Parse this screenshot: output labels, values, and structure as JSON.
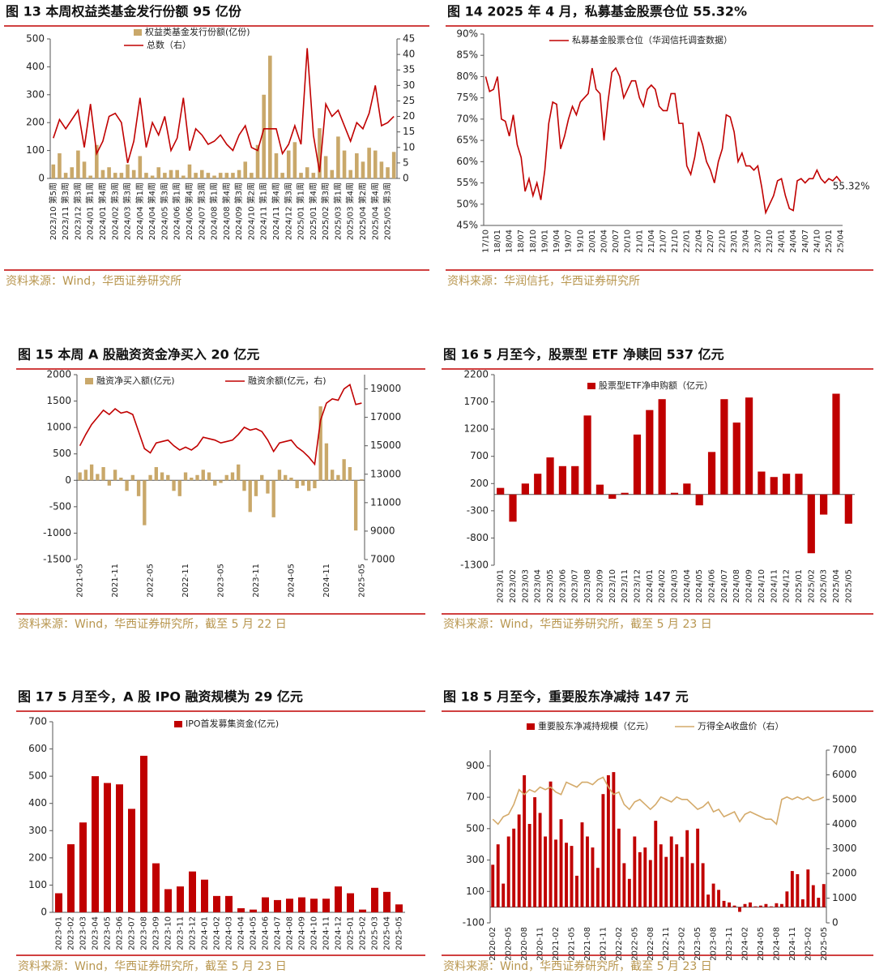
{
  "chart_data": [
    {
      "type": "combo",
      "title": "图 13 本周权益类基金发行份额 95 亿份",
      "source": "资料来源：Wind，华西证券研究所",
      "categories": [
        "2023/10 第5周",
        null,
        "2023/11 第3周",
        null,
        "2023/12 第3周",
        null,
        "2024/01 第1周",
        null,
        "2024/01 第4周",
        null,
        "2024/02 第3周",
        null,
        "2024/03 第3周",
        null,
        "2024/04 第1周",
        null,
        "2024/04 第4周",
        null,
        "2024/05 第3周",
        null,
        "2024/06 第1周",
        null,
        "2024/06 第4周",
        null,
        "2024/07 第3周",
        null,
        "2024/08 第1周",
        null,
        "2024/08 第4周",
        null,
        "2024/09 第3周",
        null,
        "2024/10 第2周",
        null,
        "2024/11 第1周",
        null,
        "2024/11 第4周",
        null,
        "2024/12 第3周",
        null,
        "2025/01 第1周",
        null,
        "2025/01 第4周",
        null,
        "2025/02 第3周",
        null,
        "2025/03 第1周",
        null,
        "2025/03 第4周",
        null,
        "2025/04 第2周",
        null,
        "2025/04 第4周",
        null,
        "2025/05 第3周",
        null
      ],
      "ylim": [
        0,
        500
      ],
      "yticks": [
        0,
        100,
        200,
        300,
        400,
        500
      ],
      "y2lim": [
        0,
        45
      ],
      "y2ticks": [
        0,
        5,
        10,
        15,
        20,
        25,
        30,
        35,
        40,
        45
      ],
      "series": [
        {
          "name": "权益类基金发行份额(亿份)",
          "type": "bar",
          "color": "#c9a86a",
          "values": [
            50,
            90,
            20,
            40,
            100,
            60,
            10,
            120,
            30,
            40,
            20,
            20,
            50,
            30,
            80,
            20,
            10,
            40,
            20,
            30,
            30,
            10,
            50,
            20,
            30,
            20,
            10,
            20,
            20,
            20,
            30,
            60,
            20,
            120,
            300,
            440,
            90,
            20,
            100,
            130,
            20,
            40,
            20,
            180,
            80,
            30,
            150,
            100,
            30,
            90,
            60,
            110,
            100,
            60,
            40,
            95
          ]
        },
        {
          "name": "总数（右）",
          "type": "line",
          "axis": "y2",
          "color": "#c00000",
          "values": [
            13,
            19,
            16,
            19,
            22,
            10,
            24,
            8,
            12,
            20,
            21,
            18,
            5,
            12,
            26,
            10,
            18,
            14,
            20,
            9,
            13,
            26,
            9,
            16,
            14,
            11,
            12,
            14,
            11,
            9,
            14,
            17,
            10,
            9,
            16,
            16,
            16,
            8,
            11,
            17,
            11,
            42,
            14,
            2,
            24,
            20,
            22,
            17,
            12,
            18,
            16,
            21,
            30,
            17,
            18,
            20
          ]
        }
      ]
    },
    {
      "type": "line",
      "title": "图 14 2025 年 4 月，私募基金股票仓位 55.32%",
      "source": "资料来源：华润信托，华西证券研究所",
      "categories": [
        "17/10",
        null,
        null,
        "18/01",
        null,
        null,
        "18/04",
        null,
        null,
        "18/07",
        null,
        null,
        "18/10",
        null,
        null,
        "19/01",
        null,
        null,
        "19/04",
        null,
        null,
        "19/07",
        null,
        null,
        "19/10",
        null,
        null,
        "20/01",
        null,
        null,
        "20/04",
        null,
        null,
        "20/07",
        null,
        null,
        "20/10",
        null,
        null,
        "21/01",
        null,
        null,
        "21/04",
        null,
        null,
        "21/07",
        null,
        null,
        "21/10",
        null,
        null,
        "22/01",
        null,
        null,
        "22/04",
        null,
        null,
        "22/07",
        null,
        null,
        "22/10",
        null,
        null,
        "23/01",
        null,
        null,
        "23/04",
        null,
        null,
        "23/07",
        null,
        null,
        "23/10",
        null,
        null,
        "24/01",
        null,
        null,
        "24/04",
        null,
        null,
        "24/07",
        null,
        null,
        "24/10",
        null,
        null,
        "25/01",
        null,
        null,
        "25/04"
      ],
      "ylim": [
        45,
        90
      ],
      "yticks": [
        {
          "value": 45,
          "label": "45%"
        },
        {
          "value": 50,
          "label": "50%"
        },
        {
          "value": 55,
          "label": "55%"
        },
        {
          "value": 60,
          "label": "60%"
        },
        {
          "value": 65,
          "label": "65%"
        },
        {
          "value": 70,
          "label": "70%"
        },
        {
          "value": 75,
          "label": "75%"
        },
        {
          "value": 80,
          "label": "80%"
        },
        {
          "value": 85,
          "label": "85%"
        },
        {
          "value": 90,
          "label": "90%"
        }
      ],
      "series": [
        {
          "name": "私募基金股票仓位（华润信托调查数据）",
          "color": "#c00000",
          "values": [
            80,
            76.5,
            77,
            80,
            70,
            69.5,
            66,
            71,
            64,
            61,
            53,
            56,
            52,
            55,
            51,
            58,
            69,
            74,
            73.5,
            63,
            66,
            70,
            73,
            71,
            74,
            75,
            76,
            82,
            77,
            76,
            65,
            74,
            81,
            82,
            80,
            75,
            77,
            79,
            79,
            75,
            73,
            77,
            78,
            77,
            73,
            72,
            72,
            76,
            76,
            69,
            69,
            59,
            57,
            61,
            67,
            64,
            60,
            58,
            55,
            60,
            63,
            71,
            70.5,
            67,
            60,
            62,
            59,
            59,
            58,
            59,
            54,
            48,
            50,
            52,
            55.5,
            56,
            52,
            49,
            48.5,
            55.5,
            56,
            55,
            56,
            56,
            58,
            56,
            55,
            56,
            55.5,
            56.5,
            55.32
          ],
          "value_labels": [
            null,
            null,
            null,
            null,
            null,
            null,
            null,
            null,
            null,
            null,
            null,
            null,
            null,
            null,
            null,
            null,
            null,
            null,
            null,
            null,
            null,
            null,
            null,
            null,
            null,
            null,
            null,
            null,
            null,
            null,
            null,
            null,
            null,
            null,
            null,
            null,
            null,
            null,
            null,
            null,
            null,
            null,
            null,
            null,
            null,
            null,
            null,
            null,
            null,
            null,
            null,
            null,
            null,
            null,
            null,
            null,
            null,
            null,
            null,
            null,
            null,
            null,
            null,
            null,
            null,
            null,
            null,
            null,
            null,
            null,
            null,
            null,
            null,
            null,
            null,
            null,
            null,
            null,
            null,
            null,
            null,
            null,
            null,
            null,
            null,
            null,
            null,
            null,
            null,
            null,
            "55.32%"
          ]
        }
      ]
    },
    {
      "type": "combo",
      "title": "图 15 本周 A 股融资资金净买入 20 亿元",
      "source": "资料来源：Wind，华西证券研究所，截至 5 月 22 日",
      "categories": [
        "2021-05",
        null,
        null,
        null,
        null,
        null,
        "2021-11",
        null,
        null,
        null,
        null,
        null,
        "2022-05",
        null,
        null,
        null,
        null,
        null,
        "2022-11",
        null,
        null,
        null,
        null,
        null,
        "2023-05",
        null,
        null,
        null,
        null,
        null,
        "2023-11",
        null,
        null,
        null,
        null,
        null,
        "2024-05",
        null,
        null,
        null,
        null,
        null,
        "2024-11",
        null,
        null,
        null,
        null,
        null,
        "2025-05"
      ],
      "ylim": [
        -1500,
        2000
      ],
      "yticks": [
        -1500,
        -1000,
        -500,
        0,
        500,
        1000,
        1500,
        2000
      ],
      "y2lim": [
        7000,
        20000
      ],
      "y2ticks": [
        7000,
        9000,
        11000,
        13000,
        15000,
        17000,
        19000
      ],
      "series": [
        {
          "name": "融资净买入额(亿元)",
          "type": "bar",
          "color": "#c9a86a",
          "values": [
            150,
            200,
            300,
            120,
            250,
            -100,
            200,
            50,
            -200,
            100,
            -300,
            -850,
            100,
            250,
            150,
            100,
            -200,
            -300,
            150,
            50,
            100,
            200,
            150,
            -100,
            -50,
            100,
            150,
            300,
            -200,
            -600,
            -300,
            100,
            -250,
            -700,
            200,
            100,
            50,
            -150,
            -100,
            -200,
            -150,
            1400,
            700,
            200,
            100,
            400,
            250,
            -950,
            20
          ]
        },
        {
          "name": "融资余额(亿元，右)",
          "type": "line",
          "axis": "y2",
          "color": "#c00000",
          "values": [
            15000,
            15800,
            16500,
            17000,
            17500,
            17200,
            17600,
            17300,
            17400,
            17200,
            16000,
            14800,
            14500,
            15200,
            15300,
            15400,
            15000,
            14700,
            14900,
            14700,
            15000,
            15600,
            15500,
            15400,
            15200,
            15300,
            15400,
            15800,
            16300,
            16100,
            16200,
            16000,
            15400,
            14600,
            15200,
            15300,
            15400,
            14900,
            14600,
            14200,
            13700,
            16800,
            18000,
            18300,
            18200,
            19000,
            19300,
            17900,
            18000
          ]
        }
      ]
    },
    {
      "type": "bar",
      "title": "图 16 5 月至今，股票型 ETF 净赎回 537 亿元",
      "source": "资料来源：Wind，华西证券研究所，截至 5 月 23 日",
      "categories": [
        "2023/01",
        "2023/02",
        "2023/03",
        "2023/04",
        "2023/05",
        "2023/06",
        "2023/07",
        "2023/08",
        "2023/09",
        "2023/10",
        "2023/11",
        "2023/12",
        "2024/01",
        "2024/02",
        "2024/03",
        "2024/04",
        "2024/05",
        "2024/06",
        "2024/07",
        "2024/08",
        "2024/09",
        "2024/10",
        "2024/11",
        "2024/12",
        "2025/01",
        "2025/02",
        "2025/03",
        "2025/04",
        "2025/05"
      ],
      "ylim": [
        -1300,
        2200
      ],
      "yticks": [
        -1300,
        -800,
        -300,
        200,
        700,
        1200,
        1700,
        2200
      ],
      "series": [
        {
          "name": "股票型ETF净申购额（亿元）",
          "color": "#c00000",
          "values": [
            120,
            -500,
            200,
            380,
            680,
            520,
            520,
            1450,
            180,
            -80,
            30,
            1100,
            1550,
            1750,
            30,
            200,
            -200,
            780,
            1750,
            1320,
            1780,
            420,
            320,
            380,
            380,
            -1080,
            -370,
            1850,
            -537
          ]
        }
      ]
    },
    {
      "type": "bar",
      "title": "图 17 5 月至今，A 股 IPO 融资规模为 29 亿元",
      "source": "资料来源：Wind，华西证券研究所，截至 5 月 23 日",
      "categories": [
        "2023-01",
        "2023-02",
        "2023-03",
        "2023-04",
        "2023-05",
        "2023-06",
        "2023-07",
        "2023-08",
        "2023-09",
        "2023-10",
        "2023-11",
        "2023-12",
        "2024-01",
        "2024-02",
        "2024-03",
        "2024-04",
        "2024-05",
        "2024-06",
        "2024-07",
        "2024-08",
        "2024-09",
        "2024-10",
        "2024-11",
        "2024-12",
        "2025-01",
        "2025-02",
        "2025-03",
        "2025-04",
        "2025-05"
      ],
      "ylim": [
        0,
        700
      ],
      "yticks": [
        0,
        100,
        200,
        300,
        400,
        500,
        600,
        700
      ],
      "series": [
        {
          "name": "IPO首发募集资金(亿元)",
          "color": "#c00000",
          "values": [
            70,
            250,
            330,
            500,
            475,
            470,
            380,
            575,
            180,
            85,
            95,
            150,
            120,
            60,
            60,
            15,
            10,
            55,
            45,
            50,
            55,
            50,
            50,
            95,
            70,
            10,
            90,
            75,
            29
          ]
        }
      ]
    },
    {
      "type": "combo",
      "title": "图 18 5 月至今，重要股东净减持 147 元",
      "source": "资料来源：Wind，华西证券研究所，截至 5 月 23 日",
      "categories": [
        "2020-02",
        null,
        null,
        "2020-05",
        null,
        null,
        "2020-08",
        null,
        null,
        "2020-11",
        null,
        null,
        "2021-02",
        null,
        null,
        "2021-05",
        null,
        null,
        "2021-08",
        null,
        null,
        "2021-11",
        null,
        null,
        "2022-02",
        null,
        null,
        "2022-05",
        null,
        null,
        "2022-08",
        null,
        null,
        "2022-11",
        null,
        null,
        "2023-02",
        null,
        null,
        "2023-05",
        null,
        null,
        "2023-08",
        null,
        null,
        "2023-11",
        null,
        null,
        "2024-02",
        null,
        null,
        "2024-05",
        null,
        null,
        "2024-08",
        null,
        null,
        "2024-11",
        null,
        null,
        "2025-02",
        null,
        null,
        "2025-05"
      ],
      "ylim": [
        -100,
        1000
      ],
      "yticks": [
        -100,
        100,
        300,
        500,
        700,
        900
      ],
      "y2lim": [
        0,
        7000
      ],
      "y2ticks": [
        0,
        1000,
        2000,
        3000,
        4000,
        5000,
        6000,
        7000
      ],
      "series": [
        {
          "name": "重要股东净减持规模（亿元）",
          "type": "bar",
          "color": "#c00000",
          "values": [
            270,
            400,
            150,
            450,
            500,
            590,
            840,
            530,
            700,
            600,
            450,
            800,
            430,
            560,
            410,
            390,
            200,
            540,
            450,
            380,
            250,
            720,
            840,
            860,
            500,
            280,
            180,
            450,
            350,
            380,
            300,
            550,
            400,
            320,
            450,
            400,
            320,
            490,
            280,
            500,
            280,
            80,
            150,
            110,
            40,
            30,
            10,
            -30,
            20,
            30,
            5,
            10,
            20,
            5,
            25,
            20,
            100,
            230,
            210,
            50,
            240,
            140,
            60,
            147
          ]
        },
        {
          "name": "万得全A收盘价（右）",
          "type": "line",
          "axis": "y2",
          "color": "#d4aa6a",
          "values": [
            4200,
            4000,
            4300,
            4400,
            4800,
            5400,
            5200,
            5400,
            5300,
            5500,
            5400,
            5500,
            5300,
            5200,
            5700,
            5600,
            5500,
            5700,
            5700,
            5600,
            5800,
            5900,
            5500,
            5200,
            5300,
            4800,
            4600,
            4900,
            5000,
            4800,
            4600,
            4800,
            5100,
            5000,
            4900,
            5100,
            5000,
            5000,
            4800,
            4600,
            4700,
            4900,
            4500,
            4600,
            4300,
            4400,
            4500,
            4100,
            4400,
            4500,
            4400,
            4300,
            4200,
            4200,
            4000,
            5000,
            5100,
            5000,
            5100,
            5000,
            5100,
            4950,
            5000,
            5100
          ]
        }
      ]
    }
  ]
}
